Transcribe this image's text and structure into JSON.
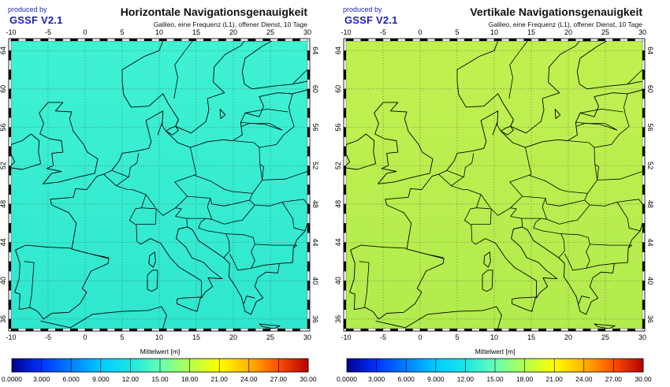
{
  "brand": {
    "produced_by": "produced by",
    "name": "GSSF V2.1"
  },
  "panels": [
    {
      "title": "Horizontale Navigationsgenauigkeit",
      "subtitle": "Galileo, eine Frequenz (L1), offener Dienst, 10 Tage",
      "field_color_top": "#3ff2d2",
      "field_color_bottom": "#2fe6cf"
    },
    {
      "title": "Vertikale Navigationsgenauigkeit",
      "subtitle": "Galileo, eine Frequenz (L1), offener Dienst, 10 Tage",
      "field_color_top": "#c0f050",
      "field_color_bottom": "#b2ec4e"
    }
  ],
  "map": {
    "lon_range": [
      -10,
      30
    ],
    "lat_range": [
      35,
      65
    ],
    "lon_ticks": [
      "-10",
      "-5",
      "0",
      "5",
      "10",
      "15",
      "20",
      "25",
      "30"
    ],
    "lat_ticks": [
      "36",
      "40",
      "44",
      "48",
      "52",
      "56",
      "60",
      "64"
    ],
    "grid": "dotted"
  },
  "colorbar": {
    "label": "Mittelwert [m]",
    "left_labels": [
      "0.0000",
      "3.000",
      "6.000",
      "9.000",
      "12.00",
      "15.00",
      "18.00",
      "21.00",
      "24.00",
      "27.00",
      "30.00"
    ],
    "right_labels": [
      "0.0000",
      "3.000",
      "6.000",
      "9.000",
      "12.00",
      "15.00",
      "18.00",
      "21.00",
      "24.00",
      "27.00",
      "30.00"
    ],
    "colors": [
      "#00008f",
      "#0033ff",
      "#0080ff",
      "#00ccff",
      "#1ae6e6",
      "#66ffb3",
      "#b3ff4d",
      "#ffff00",
      "#ffb300",
      "#ff4d00",
      "#b30000"
    ]
  }
}
